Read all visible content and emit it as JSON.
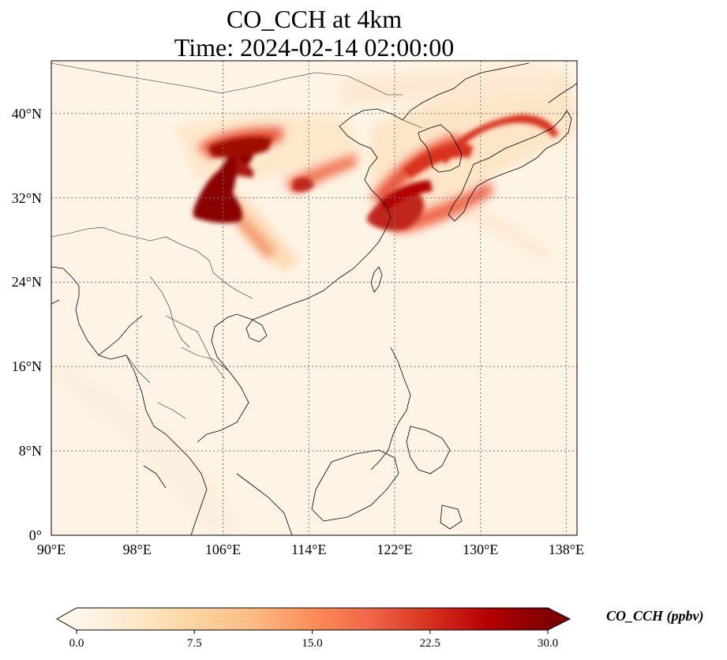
{
  "title": "CO_CCH at 4km",
  "subtitle": "Time: 2024-02-14 02:00:00",
  "map": {
    "lon_range": [
      90,
      139
    ],
    "lat_range": [
      0,
      45
    ],
    "gridlines": "dotted gray",
    "x_ticks": [
      {
        "value": 90,
        "label": "90°E"
      },
      {
        "value": 98,
        "label": "98°E"
      },
      {
        "value": 106,
        "label": "106°E"
      },
      {
        "value": 114,
        "label": "114°E"
      },
      {
        "value": 122,
        "label": "122°E"
      },
      {
        "value": 130,
        "label": "130°E"
      },
      {
        "value": 138,
        "label": "138°E"
      }
    ],
    "y_ticks": [
      {
        "value": 0,
        "label": "0°"
      },
      {
        "value": 8,
        "label": "8°N"
      },
      {
        "value": 16,
        "label": "16°N"
      },
      {
        "value": 24,
        "label": "24°N"
      },
      {
        "value": 32,
        "label": "32°N"
      },
      {
        "value": 40,
        "label": "40°N"
      }
    ],
    "background_color": "#fef4e6",
    "coastline_color": "#000000"
  },
  "colorbar": {
    "label": "CO_CCH (ppbv)",
    "colormap": "OrRd",
    "colors": [
      "#fff7ec",
      "#fee8c8",
      "#fdd49e",
      "#fdbb84",
      "#fc8d59",
      "#ef6548",
      "#d7301f",
      "#b30000",
      "#7f0000"
    ],
    "range": [
      0,
      30
    ],
    "extend": "both",
    "ticks": [
      {
        "value": 0,
        "label": "0.0"
      },
      {
        "value": 7.5,
        "label": "7.5"
      },
      {
        "value": 15,
        "label": "15.0"
      },
      {
        "value": 22.5,
        "label": "22.5"
      },
      {
        "value": 30,
        "label": "30.0"
      }
    ]
  }
}
